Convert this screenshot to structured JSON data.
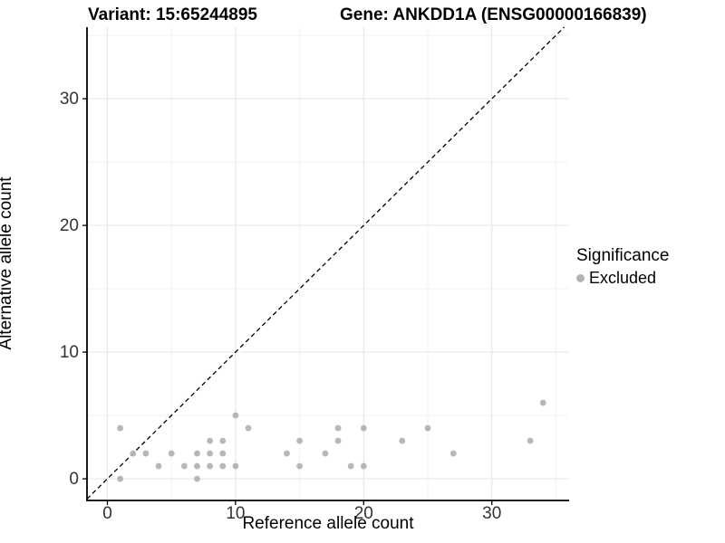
{
  "header": {
    "title_left": "Variant: 15:65244895",
    "title_right": "Gene: ANKDD1A (ENSG00000166839)"
  },
  "legend": {
    "title": "Significance",
    "items": [
      {
        "label": "Excluded",
        "color": "#b3b3b3"
      }
    ]
  },
  "chart_data": {
    "type": "scatter",
    "title_left": "Variant: 15:65244895",
    "title_right": "Gene: ANKDD1A (ENSG00000166839)",
    "xlabel": "Reference allele count",
    "ylabel": "Alternative allele count",
    "xlim": [
      -1.59,
      36.03
    ],
    "ylim": [
      -1.71,
      35.65
    ],
    "x_ticks": [
      0,
      10,
      20,
      30
    ],
    "y_ticks": [
      0,
      10,
      20,
      30
    ],
    "x_minor_gridlines": [
      5,
      15,
      25,
      35
    ],
    "y_minor_gridlines": [
      5,
      15,
      25,
      35
    ],
    "grid": true,
    "legend_position": "right",
    "identity_line": {
      "style": "dashed",
      "equation": "y = x",
      "color": "#000000"
    },
    "series": [
      {
        "name": "Excluded",
        "color": "#b3b3b3",
        "points": [
          [
            1,
            0
          ],
          [
            1,
            4
          ],
          [
            2,
            2
          ],
          [
            3,
            2
          ],
          [
            4,
            1
          ],
          [
            5,
            2
          ],
          [
            6,
            1
          ],
          [
            7,
            0
          ],
          [
            7,
            1
          ],
          [
            7,
            2
          ],
          [
            8,
            1
          ],
          [
            8,
            2
          ],
          [
            8,
            3
          ],
          [
            9,
            1
          ],
          [
            9,
            2
          ],
          [
            9,
            3
          ],
          [
            10,
            1
          ],
          [
            10,
            5
          ],
          [
            11,
            4
          ],
          [
            14,
            2
          ],
          [
            15,
            1
          ],
          [
            15,
            3
          ],
          [
            17,
            2
          ],
          [
            18,
            3
          ],
          [
            18,
            4
          ],
          [
            19,
            1
          ],
          [
            20,
            1
          ],
          [
            20,
            4
          ],
          [
            23,
            3
          ],
          [
            25,
            4
          ],
          [
            27,
            2
          ],
          [
            33,
            3
          ],
          [
            34,
            6
          ]
        ]
      }
    ],
    "colors": {
      "point": "#b3b3b3",
      "major_grid": "#e8e8e8",
      "minor_grid": "#f2f2f2",
      "axis_line": "#000000",
      "tick_text": "#333333"
    }
  }
}
